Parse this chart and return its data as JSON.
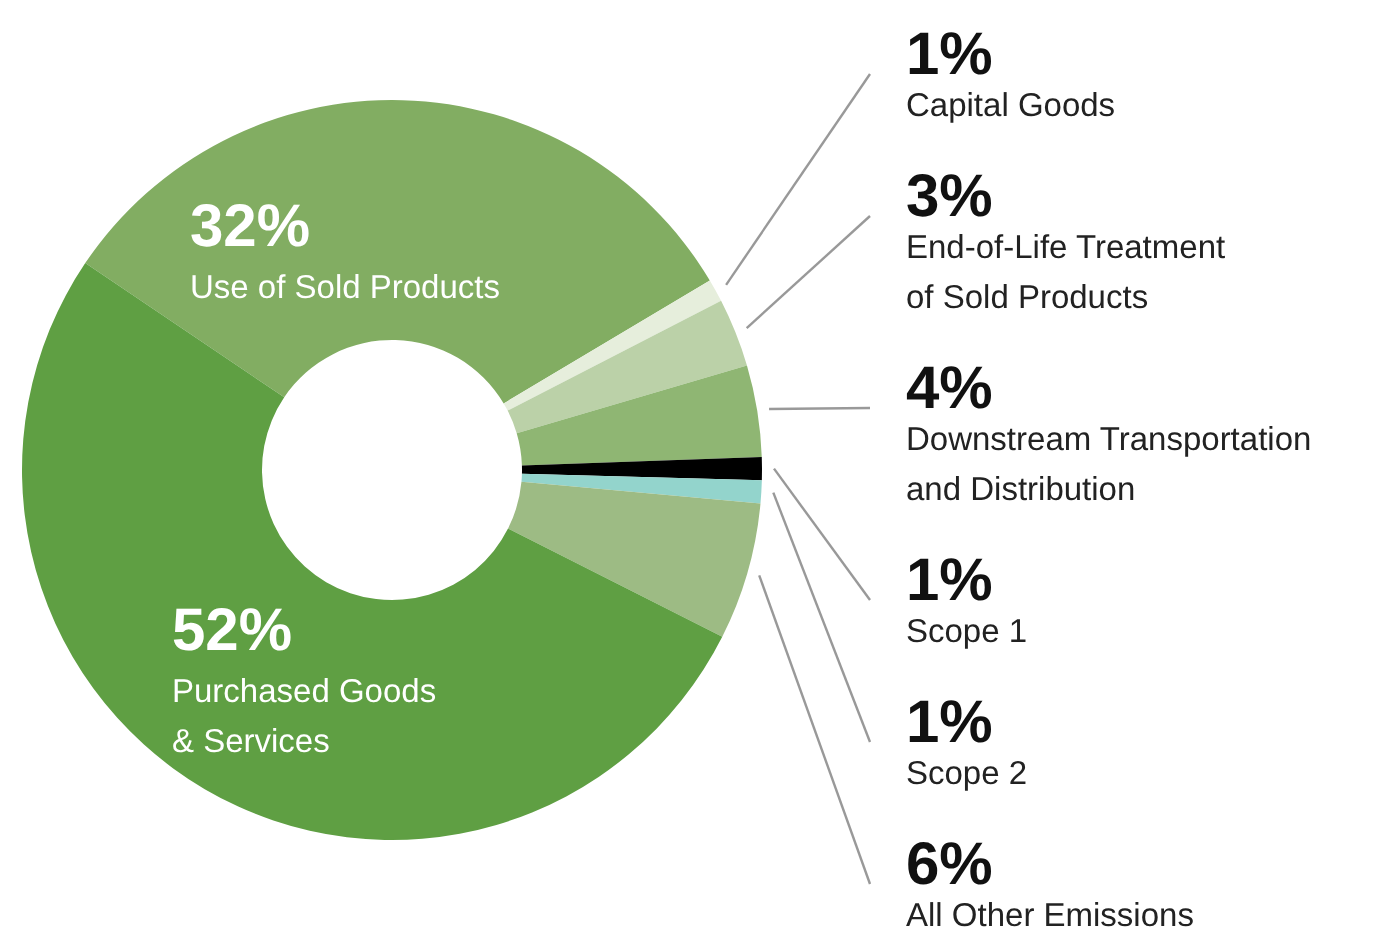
{
  "chart_data": {
    "type": "donut",
    "categories": [
      "Use of Sold Products",
      "Capital Goods",
      "End-of-Life Treatment\nof Sold Products",
      "Downstream Transportation\nand Distribution",
      "Scope 1",
      "Scope 2",
      "All Other Emissions",
      "Purchased Goods\n& Services"
    ],
    "values": [
      32,
      1,
      3,
      4,
      1,
      1,
      6,
      52
    ],
    "colors": [
      "#82ad62",
      "#e6eedc",
      "#bbd1a8",
      "#8fb673",
      "#000000",
      "#93d4cc",
      "#9dbb84",
      "#5f9f43"
    ],
    "value_labels": [
      "32%",
      "1%",
      "3%",
      "4%",
      "1%",
      "1%",
      "6%",
      "52%"
    ]
  }
}
